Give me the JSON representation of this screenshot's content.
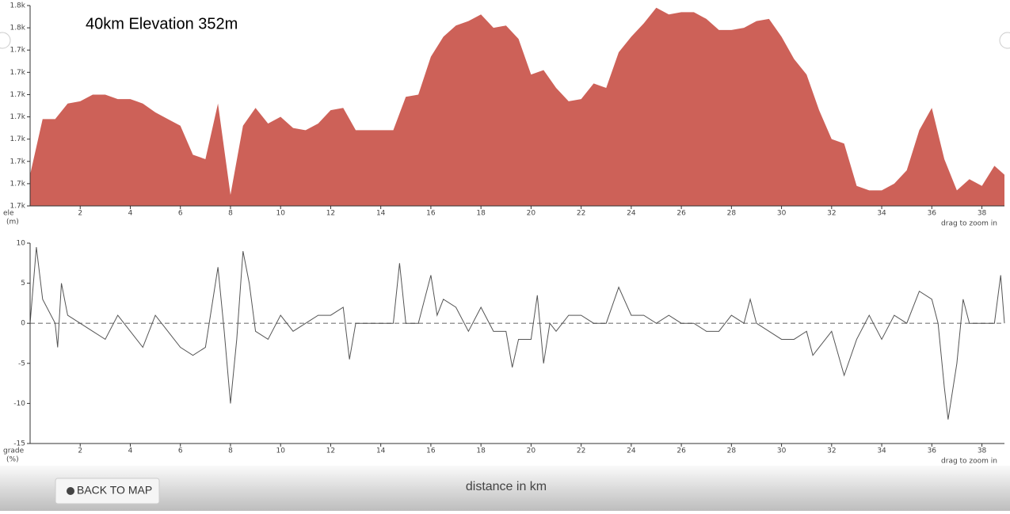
{
  "chart_data": [
    {
      "type": "area",
      "title": "40km Elevation 352m",
      "ylabel": "ele",
      "yunit": "(m)",
      "hint": "drag to zoom in",
      "color": "#cd6158",
      "x": [
        0,
        0.5,
        1,
        1.5,
        2,
        2.5,
        3,
        3.5,
        4,
        4.5,
        5,
        5.5,
        6,
        6.5,
        7,
        7.5,
        8,
        8.5,
        9,
        9.5,
        10,
        10.5,
        11,
        11.5,
        12,
        12.5,
        13,
        13.5,
        14,
        14.5,
        15,
        15.5,
        16,
        16.5,
        17,
        17.5,
        18,
        18.5,
        19,
        19.5,
        20,
        20.5,
        21,
        21.5,
        22,
        22.5,
        23,
        23.5,
        24,
        24.5,
        25,
        25.5,
        26,
        26.5,
        27,
        27.5,
        28,
        28.5,
        29,
        29.5,
        30,
        30.5,
        31,
        31.5,
        32,
        32.5,
        33,
        33.5,
        34,
        34.5,
        35,
        35.5,
        36,
        36.5,
        37,
        37.5,
        38,
        38.5,
        38.9
      ],
      "values": [
        1689,
        1714,
        1714,
        1721,
        1722,
        1725,
        1725,
        1723,
        1723,
        1721,
        1717,
        1714,
        1711,
        1698,
        1696,
        1721,
        1680,
        1711,
        1719,
        1712,
        1715,
        1710,
        1709,
        1712,
        1718,
        1719,
        1709,
        1709,
        1709,
        1709,
        1724,
        1725,
        1742,
        1751,
        1756,
        1758,
        1761,
        1755,
        1756,
        1750,
        1734,
        1736,
        1728,
        1722,
        1723,
        1730,
        1728,
        1744,
        1751,
        1757,
        1764,
        1761,
        1762,
        1762,
        1759,
        1754,
        1754,
        1755,
        1758,
        1759,
        1751,
        1741,
        1734,
        1718,
        1705,
        1703,
        1684,
        1682,
        1682,
        1685,
        1691,
        1709,
        1719,
        1696,
        1682,
        1687,
        1684,
        1693,
        1689
      ],
      "xlim": [
        0,
        38.9
      ],
      "xticks": [
        2,
        4,
        6,
        8,
        10,
        12,
        14,
        16,
        18,
        20,
        22,
        24,
        26,
        28,
        30,
        32,
        34,
        36,
        38
      ],
      "ylim": [
        1675,
        1765
      ],
      "yticks": [
        {
          "value": 1675,
          "label": "1.7k"
        },
        {
          "value": 1685,
          "label": "1.7k"
        },
        {
          "value": 1695,
          "label": "1.7k"
        },
        {
          "value": 1705,
          "label": "1.7k"
        },
        {
          "value": 1715,
          "label": "1.7k"
        },
        {
          "value": 1725,
          "label": "1.7k"
        },
        {
          "value": 1735,
          "label": "1.7k"
        },
        {
          "value": 1745,
          "label": "1.7k"
        },
        {
          "value": 1755,
          "label": "1.8k"
        },
        {
          "value": 1765,
          "label": "1.8k"
        }
      ]
    },
    {
      "type": "line",
      "ylabel": "grade",
      "yunit": "(%)",
      "hint": "drag to zoom in",
      "color": "#555555",
      "zero_line": true,
      "x": [
        0,
        0.25,
        0.5,
        1,
        1.1,
        1.25,
        1.5,
        2,
        2.5,
        3,
        3.5,
        4,
        4.5,
        5,
        5.5,
        6,
        6.5,
        7,
        7.5,
        7.75,
        8,
        8.25,
        8.5,
        8.75,
        9,
        9.5,
        10,
        10.5,
        11,
        11.5,
        12,
        12.5,
        12.75,
        13,
        13.5,
        14,
        14.5,
        14.75,
        15,
        15.5,
        16,
        16.25,
        16.5,
        17,
        17.5,
        18,
        18.5,
        19,
        19.25,
        19.5,
        20,
        20.25,
        20.5,
        20.75,
        21,
        21.5,
        22,
        22.5,
        23,
        23.5,
        24,
        24.5,
        25,
        25.5,
        26,
        26.5,
        27,
        27.5,
        28,
        28.5,
        28.75,
        29,
        29.5,
        30,
        30.5,
        31,
        31.25,
        31.5,
        32,
        32.5,
        33,
        33.5,
        34,
        34.5,
        35,
        35.5,
        36,
        36.25,
        36.5,
        36.65,
        37,
        37.25,
        37.5,
        38,
        38.5,
        38.75,
        38.9
      ],
      "values": [
        0,
        9.5,
        3,
        0,
        -3,
        5,
        1,
        0,
        -1,
        -2,
        1,
        -1,
        -3,
        1,
        -1,
        -3,
        -4,
        -3,
        7,
        -1,
        -10,
        -2,
        9,
        5,
        -1,
        -2,
        1,
        -1,
        0,
        1,
        1,
        2,
        -4.5,
        0,
        0,
        0,
        0,
        7.5,
        0,
        0,
        6,
        1,
        3,
        2,
        -1,
        2,
        -1,
        -1,
        -5.5,
        -2,
        -2,
        3.5,
        -5,
        0,
        -1,
        1,
        1,
        0,
        0,
        4.5,
        1,
        1,
        0,
        1,
        0,
        0,
        -1,
        -1,
        1,
        0,
        3,
        0,
        -1,
        -2,
        -2,
        -1,
        -4,
        -3,
        -1,
        -6.5,
        -2,
        1,
        -2,
        1,
        0,
        4,
        3,
        0,
        -8,
        -12,
        -5,
        3,
        0,
        0,
        0,
        6,
        0
      ],
      "xlim": [
        0,
        38.9
      ],
      "xticks": [
        2,
        4,
        6,
        8,
        10,
        12,
        14,
        16,
        18,
        20,
        22,
        24,
        26,
        28,
        30,
        32,
        34,
        36,
        38
      ],
      "ylim": [
        -15,
        10
      ],
      "yticks": [
        -15,
        -10,
        -5,
        0,
        5,
        10
      ]
    }
  ],
  "ui": {
    "back_button": "BACK TO MAP",
    "x_axis_label": "distance in km"
  }
}
